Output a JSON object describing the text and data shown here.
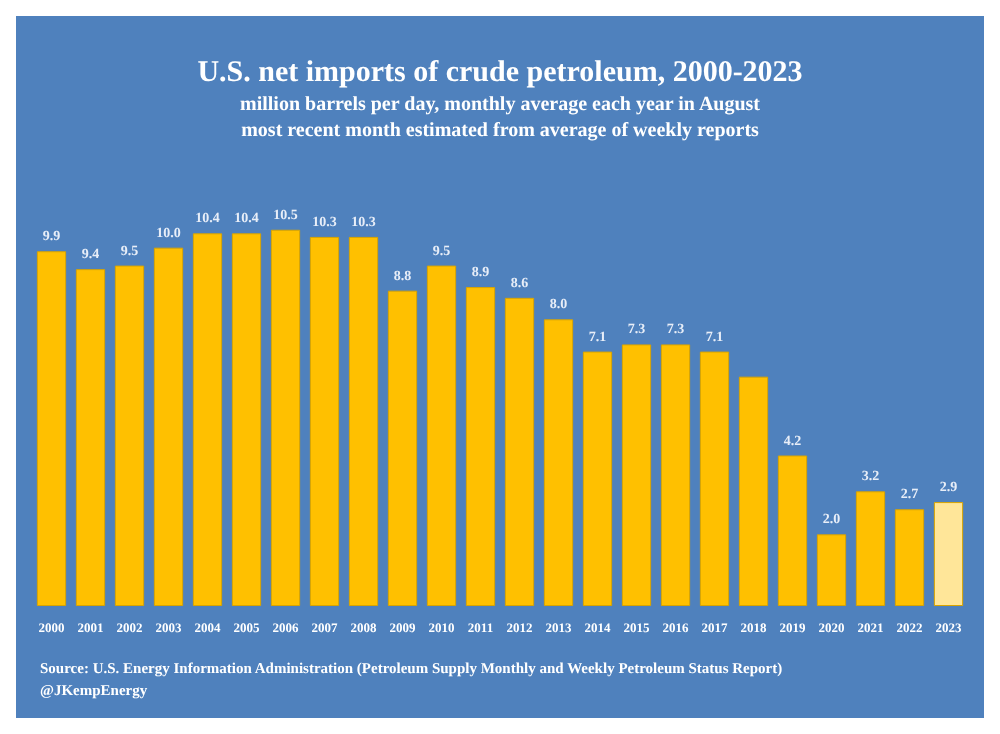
{
  "chart_data": {
    "type": "bar",
    "title": "U.S. net imports of crude petroleum, 2000-2023",
    "subtitle": "million barrels per day, monthly average each year in August\nmost recent month estimated from average of weekly reports",
    "categories": [
      "2000",
      "2001",
      "2002",
      "2003",
      "2004",
      "2005",
      "2006",
      "2007",
      "2008",
      "2009",
      "2010",
      "2011",
      "2012",
      "2013",
      "2014",
      "2015",
      "2016",
      "2017",
      "2018",
      "2019",
      "2020",
      "2021",
      "2022",
      "2023"
    ],
    "values": [
      9.9,
      9.4,
      9.5,
      10.0,
      10.4,
      10.4,
      10.5,
      10.3,
      10.3,
      8.8,
      9.5,
      8.9,
      8.6,
      8.0,
      7.1,
      7.3,
      7.3,
      7.1,
      6.4,
      4.2,
      2.0,
      3.2,
      2.7,
      2.9
    ],
    "value_labels": [
      "9.9",
      "9.4",
      "9.5",
      "10.0",
      "10.4",
      "10.4",
      "10.5",
      "10.3",
      "10.3",
      "8.8",
      "9.5",
      "8.9",
      "8.6",
      "8.0",
      "7.1",
      "7.3",
      "7.3",
      "7.1",
      null,
      "4.2",
      "2.0",
      "3.2",
      "2.7",
      "2.9"
    ],
    "colors": [
      "#ffc000",
      "#ffc000",
      "#ffc000",
      "#ffc000",
      "#ffc000",
      "#ffc000",
      "#ffc000",
      "#ffc000",
      "#ffc000",
      "#ffc000",
      "#ffc000",
      "#ffc000",
      "#ffc000",
      "#ffc000",
      "#ffc000",
      "#ffc000",
      "#ffc000",
      "#ffc000",
      "#ffc000",
      "#ffc000",
      "#ffc000",
      "#ffc000",
      "#ffc000",
      "#ffe699"
    ],
    "annotations": [
      "Source: U.S. Energy Information Administration (Petroleum Supply Monthly and Weekly Petroleum Status Report)",
      "@JKempEnergy"
    ],
    "grid": false
  }
}
